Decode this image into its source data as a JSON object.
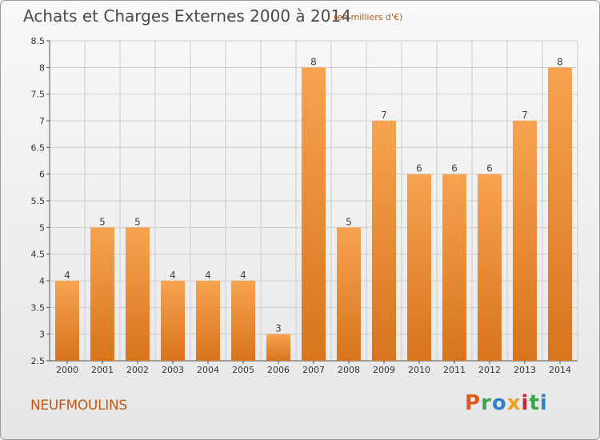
{
  "header": {
    "title": "Achats et Charges Externes 2000 à 2014",
    "subtitle": "(en milliers d'€)"
  },
  "footer": {
    "commune": "NEUFMOULINS",
    "brand": "Proxiti",
    "brand_letters": [
      "P",
      "r",
      "o",
      "x",
      "i",
      "t",
      "i"
    ]
  },
  "colors": {
    "bar_light": "#f7a34f",
    "bar_dark": "#d8741c",
    "grid": "#cccccc",
    "accent": "#c05a14"
  },
  "chart_data": {
    "type": "bar",
    "categories": [
      "2000",
      "2001",
      "2002",
      "2003",
      "2004",
      "2005",
      "2006",
      "2007",
      "2008",
      "2009",
      "2010",
      "2011",
      "2012",
      "2013",
      "2014"
    ],
    "values": [
      4,
      5,
      5,
      4,
      4,
      4,
      3,
      8,
      5,
      7,
      6,
      6,
      6,
      7,
      8
    ],
    "ylim": [
      2.5,
      8.5
    ],
    "yticks": [
      2.5,
      3,
      3.5,
      4,
      4.5,
      5,
      5.5,
      6,
      6.5,
      7,
      7.5,
      8,
      8.5
    ],
    "grid": true,
    "xlabel": "",
    "ylabel": ""
  }
}
